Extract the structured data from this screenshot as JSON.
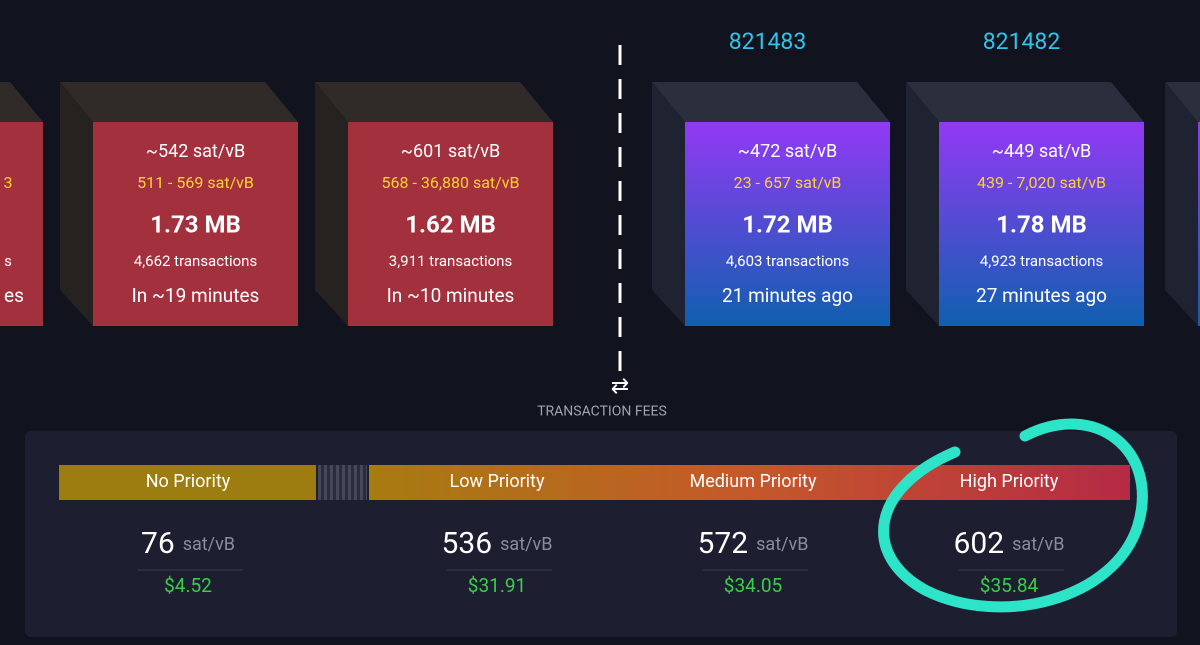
{
  "partial_block": {
    "fee_range_tail": "3",
    "transactions_tail": "s",
    "time_tail": "es"
  },
  "mempool_blocks": [
    {
      "median_fee": "~542 sat/vB",
      "fee_range": "511 - 569 sat/vB",
      "size": "1.73 MB",
      "transactions": "4,662 transactions",
      "time": "In ~19 minutes"
    },
    {
      "median_fee": "~601 sat/vB",
      "fee_range": "568 - 36,880 sat/vB",
      "size": "1.62 MB",
      "transactions": "3,911 transactions",
      "time": "In ~10 minutes"
    }
  ],
  "mined_blocks": [
    {
      "height": "821483",
      "median_fee": "~472 sat/vB",
      "fee_range": "23 - 657 sat/vB",
      "size": "1.72 MB",
      "transactions": "4,603 transactions",
      "time": "21 minutes ago"
    },
    {
      "height": "821482",
      "median_fee": "~449 sat/vB",
      "fee_range": "439 - 7,020 sat/vB",
      "size": "1.78 MB",
      "transactions": "4,923 transactions",
      "time": "27 minutes ago"
    }
  ],
  "fees": {
    "title": "TRANSACTION FEES",
    "priorities": [
      {
        "label": "No Priority",
        "value": 76,
        "unit": "sat/vB",
        "usd": "$4.52"
      },
      {
        "label": "Low Priority",
        "value": 536,
        "unit": "sat/vB",
        "usd": "$31.91"
      },
      {
        "label": "Medium Priority",
        "value": 572,
        "unit": "sat/vB",
        "usd": "$34.05"
      },
      {
        "label": "High Priority",
        "value": 602,
        "unit": "sat/vB",
        "usd": "$35.84"
      }
    ]
  }
}
